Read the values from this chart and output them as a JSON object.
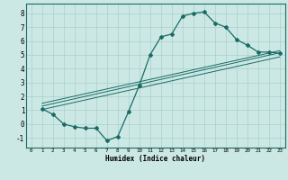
{
  "xlabel": "Humidex (Indice chaleur)",
  "bg_color": "#cce8e5",
  "grid_color": "#aacfcc",
  "line_color": "#1a6b65",
  "xlim": [
    -0.5,
    23.5
  ],
  "ylim": [
    -1.7,
    8.7
  ],
  "xticks": [
    0,
    1,
    2,
    3,
    4,
    5,
    6,
    7,
    8,
    9,
    10,
    11,
    12,
    13,
    14,
    15,
    16,
    17,
    18,
    19,
    20,
    21,
    22,
    23
  ],
  "yticks": [
    -1,
    0,
    1,
    2,
    3,
    4,
    5,
    6,
    7,
    8
  ],
  "curve1_x": [
    1,
    2,
    3,
    4,
    5,
    6,
    7,
    8,
    9,
    10,
    11,
    12,
    13,
    14,
    15,
    16,
    17,
    18,
    19,
    20,
    21,
    22,
    23
  ],
  "curve1_y": [
    1.1,
    0.7,
    0.0,
    -0.2,
    -0.3,
    -0.3,
    -1.2,
    -0.9,
    0.9,
    2.8,
    5.0,
    6.3,
    6.5,
    7.8,
    8.0,
    8.1,
    7.3,
    7.0,
    6.1,
    5.7,
    5.2,
    5.2,
    5.1
  ],
  "line2_x": [
    1,
    23
  ],
  "line2_y": [
    1.3,
    5.15
  ],
  "line3_x": [
    1,
    23
  ],
  "line3_y": [
    1.05,
    4.85
  ],
  "line4_x": [
    1,
    23
  ],
  "line4_y": [
    1.5,
    5.3
  ]
}
